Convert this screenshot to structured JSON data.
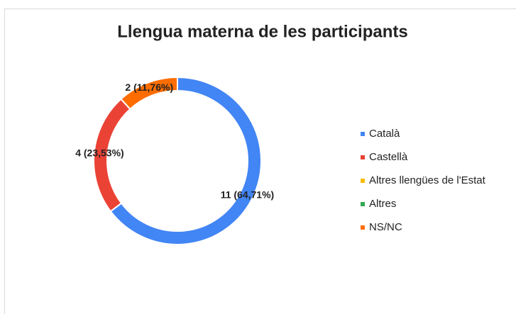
{
  "chart_data": {
    "type": "donut",
    "title": "Llengua materna de les participants",
    "categories": [
      "Català",
      "Castellà",
      "Altres llengües de l'Estat",
      "Altres",
      "NS/NC"
    ],
    "values": [
      11,
      4,
      0,
      0,
      2
    ],
    "value_labels": [
      "11 (64,71%)",
      "4 (23,53%)",
      null,
      null,
      "2 (11,76%)"
    ],
    "colors": [
      "#4285f4",
      "#ea4335",
      "#fbbc04",
      "#34a853",
      "#ff6d01"
    ],
    "legend": "right"
  }
}
